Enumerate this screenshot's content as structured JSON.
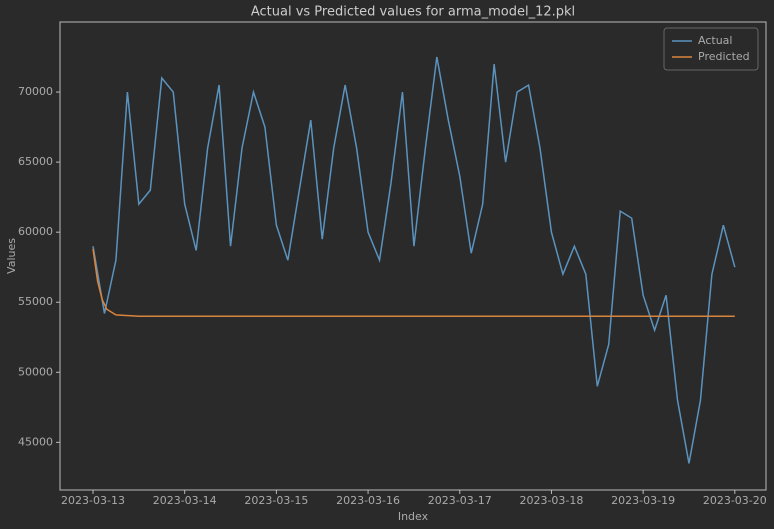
{
  "chart_data": {
    "type": "line",
    "title": "Actual vs Predicted values for arma_model_12.pkl",
    "xlabel": "Index",
    "ylabel": "Values",
    "xlim": [
      -0.36,
      7.34
    ],
    "ylim": [
      41600,
      75000
    ],
    "xticks": [
      {
        "value": 0,
        "label": "2023-03-13"
      },
      {
        "value": 1,
        "label": "2023-03-14"
      },
      {
        "value": 2,
        "label": "2023-03-15"
      },
      {
        "value": 3,
        "label": "2023-03-16"
      },
      {
        "value": 4,
        "label": "2023-03-17"
      },
      {
        "value": 5,
        "label": "2023-03-18"
      },
      {
        "value": 6,
        "label": "2023-03-19"
      },
      {
        "value": 7,
        "label": "2023-03-20"
      }
    ],
    "yticks": [
      45000,
      50000,
      55000,
      60000,
      65000,
      70000
    ],
    "grid": false,
    "legend": "upper right",
    "series": [
      {
        "name": "Actual",
        "color": "#5b93bf",
        "x": [
          0,
          0.125,
          0.25,
          0.375,
          0.5,
          0.625,
          0.75,
          0.875,
          1,
          1.125,
          1.25,
          1.375,
          1.5,
          1.625,
          1.75,
          1.875,
          2,
          2.125,
          2.25,
          2.375,
          2.5,
          2.625,
          2.75,
          2.875,
          3,
          3.125,
          3.25,
          3.375,
          3.5,
          3.625,
          3.75,
          3.875,
          4,
          4.125,
          4.25,
          4.375,
          4.5,
          4.625,
          4.75,
          4.875,
          5,
          5.125,
          5.25,
          5.375,
          5.5,
          5.625,
          5.75,
          5.875,
          6,
          6.125,
          6.25,
          6.375,
          6.5,
          6.625,
          6.75,
          6.875,
          7
        ],
        "values": [
          59000,
          54200,
          58000,
          70000,
          62000,
          63000,
          71000,
          70000,
          62000,
          58700,
          66000,
          70500,
          59000,
          66000,
          70000,
          67500,
          60500,
          58000,
          63000,
          68000,
          59500,
          66000,
          70500,
          66000,
          60000,
          58000,
          63500,
          70000,
          59000,
          66000,
          72500,
          68000,
          64000,
          58500,
          62000,
          72000,
          65000,
          70000,
          70500,
          66000,
          60000,
          57000,
          59000,
          57000,
          49000,
          52000,
          61500,
          61000,
          55500,
          53000,
          55500,
          48000,
          43500,
          48000,
          57000,
          60500,
          57500
        ]
      },
      {
        "name": "Predicted",
        "color": "#d9843c",
        "x": [
          0,
          0.05,
          0.1,
          0.15,
          0.25,
          0.5,
          7
        ],
        "values": [
          58800,
          56500,
          55200,
          54500,
          54100,
          54000,
          54000
        ]
      }
    ]
  }
}
